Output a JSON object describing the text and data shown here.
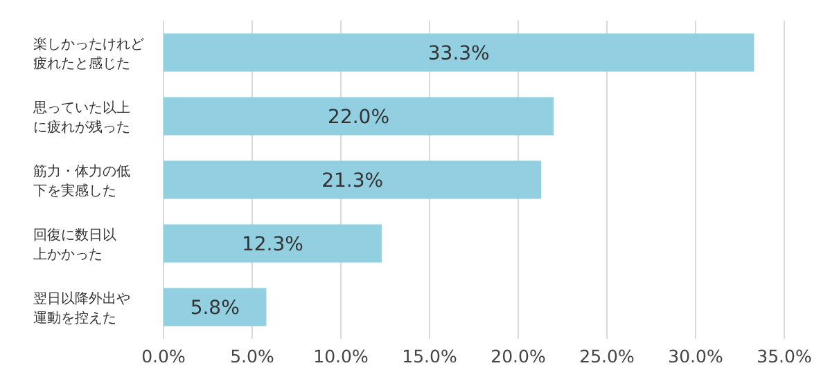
{
  "chart_data": {
    "type": "bar",
    "orientation": "horizontal",
    "categories": [
      "楽しかったけれど疲れたと感じた",
      "思っていた以上に疲れが残った",
      "筋力・体力の低下を実感した",
      "回復に数日以上かかった",
      "翌日以降外出や運動を控えた"
    ],
    "values": [
      33.3,
      22.0,
      21.3,
      12.3,
      5.8
    ],
    "value_labels": [
      "33.3%",
      "22.0%",
      "21.3%",
      "12.3%",
      "5.8%"
    ],
    "color": "#92cfe0",
    "xlim": [
      0,
      35
    ],
    "xticks": [
      {
        "value": 0,
        "label": "0.0%"
      },
      {
        "value": 5,
        "label": "5.0%"
      },
      {
        "value": 10,
        "label": "10.0%"
      },
      {
        "value": 15,
        "label": "15.0%"
      },
      {
        "value": 20,
        "label": "20.0%"
      },
      {
        "value": 25,
        "label": "25.0%"
      },
      {
        "value": 30,
        "label": "30.0%"
      },
      {
        "value": 35,
        "label": "35.0%"
      }
    ],
    "grid": "x"
  }
}
